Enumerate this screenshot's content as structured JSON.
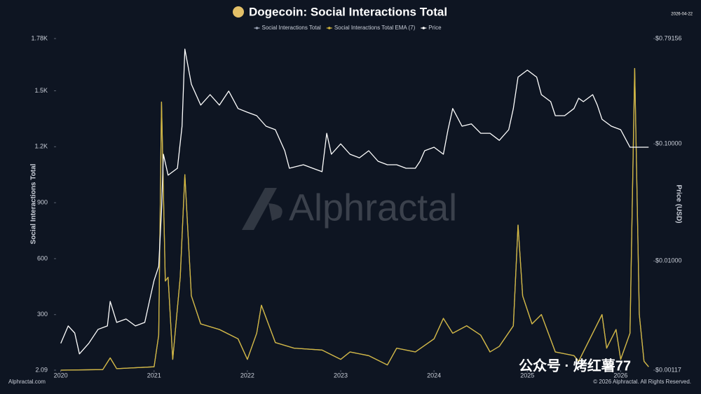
{
  "chart_data": {
    "type": "line",
    "title": "Dogecoin: Social Interactions Total",
    "date": "2026-04-22",
    "y_label": "Social Interactions Total",
    "y2_label": "Price (USD)",
    "watermark": "Alphractal",
    "source": "Alphractal.com",
    "copyright": "© 2026 Alphractal. All Rights Reserved.",
    "overlay_text": "公众号 · 烤红薯77",
    "xlim": [
      2019.95,
      2026.35
    ],
    "xticks": [
      2020,
      2021,
      2022,
      2023,
      2024,
      2025,
      2026
    ],
    "ylim": [
      2.09,
      1780
    ],
    "yticks": [
      2.09,
      300,
      600,
      900,
      {
        "value": 1200,
        "label": "1.2K"
      },
      {
        "value": 1500,
        "label": "1.5K"
      },
      {
        "value": 1780,
        "label": "1.78K"
      }
    ],
    "y2scale": "log",
    "y2lim": [
      0.00117,
      0.79156
    ],
    "y2ticks": [
      {
        "value": 0.00117,
        "label": "$0.00117"
      },
      {
        "value": 0.01,
        "label": "$0.01000"
      },
      {
        "value": 0.1,
        "label": "$0.10000"
      },
      {
        "value": 0.79156,
        "label": "$0.79156"
      }
    ],
    "series": [
      {
        "name": "Social Interactions Total",
        "color": "#9aa3b5",
        "x": [
          2020,
          2020.45,
          2020.53,
          2020.6,
          2021,
          2021.05,
          2021.08,
          2021.12,
          2021.15,
          2021.2,
          2021.28,
          2021.33,
          2021.4,
          2021.5,
          2021.7,
          2021.9,
          2022,
          2022.1,
          2022.15,
          2022.3,
          2022.5,
          2022.8,
          2023,
          2023.1,
          2023.3,
          2023.5,
          2023.6,
          2023.8,
          2024,
          2024.1,
          2024.2,
          2024.35,
          2024.5,
          2024.6,
          2024.7,
          2024.85,
          2024.9,
          2024.95,
          2025.05,
          2025.15,
          2025.3,
          2025.5,
          2025.55,
          2025.7,
          2025.8,
          2025.85,
          2025.95,
          2026,
          2026.1,
          2026.15,
          2026.2,
          2026.25,
          2026.3
        ],
        "values": [
          2,
          5,
          68,
          10,
          20,
          190,
          1440,
          480,
          500,
          60,
          500,
          1050,
          400,
          250,
          220,
          170,
          60,
          200,
          350,
          150,
          120,
          110,
          60,
          100,
          80,
          30,
          120,
          100,
          170,
          280,
          200,
          240,
          190,
          100,
          130,
          240,
          780,
          400,
          250,
          300,
          100,
          80,
          50,
          200,
          300,
          120,
          220,
          60,
          200,
          1620,
          300,
          50,
          20
        ]
      },
      {
        "name": "Social Interactions Total EMA (7)",
        "color": "#d4b73c",
        "x": [
          2020,
          2020.45,
          2020.53,
          2020.6,
          2021,
          2021.05,
          2021.08,
          2021.12,
          2021.15,
          2021.2,
          2021.28,
          2021.33,
          2021.4,
          2021.5,
          2021.7,
          2021.9,
          2022,
          2022.1,
          2022.15,
          2022.3,
          2022.5,
          2022.8,
          2023,
          2023.1,
          2023.3,
          2023.5,
          2023.6,
          2023.8,
          2024,
          2024.1,
          2024.2,
          2024.35,
          2024.5,
          2024.6,
          2024.7,
          2024.85,
          2024.9,
          2024.95,
          2025.05,
          2025.15,
          2025.3,
          2025.5,
          2025.55,
          2025.7,
          2025.8,
          2025.85,
          2025.95,
          2026,
          2026.1,
          2026.15,
          2026.2,
          2026.25,
          2026.3
        ],
        "values": [
          2,
          5,
          68,
          10,
          20,
          190,
          1440,
          480,
          500,
          60,
          500,
          1050,
          400,
          250,
          220,
          170,
          60,
          200,
          350,
          150,
          120,
          110,
          60,
          100,
          80,
          30,
          120,
          100,
          170,
          280,
          200,
          240,
          190,
          100,
          130,
          240,
          780,
          400,
          250,
          300,
          100,
          80,
          50,
          200,
          300,
          120,
          220,
          60,
          200,
          1620,
          300,
          50,
          20
        ]
      },
      {
        "name": "Price",
        "color": "#ffffff",
        "axis": "y2",
        "x": [
          2020,
          2020.08,
          2020.15,
          2020.2,
          2020.3,
          2020.4,
          2020.5,
          2020.53,
          2020.6,
          2020.7,
          2020.8,
          2020.9,
          2020.95,
          2021,
          2021.05,
          2021.08,
          2021.1,
          2021.15,
          2021.25,
          2021.3,
          2021.33,
          2021.4,
          2021.5,
          2021.6,
          2021.7,
          2021.8,
          2021.9,
          2022,
          2022.1,
          2022.2,
          2022.3,
          2022.4,
          2022.45,
          2022.6,
          2022.7,
          2022.8,
          2022.85,
          2022.9,
          2023,
          2023.1,
          2023.2,
          2023.3,
          2023.4,
          2023.5,
          2023.6,
          2023.7,
          2023.8,
          2023.85,
          2023.9,
          2024,
          2024.1,
          2024.15,
          2024.2,
          2024.3,
          2024.4,
          2024.5,
          2024.6,
          2024.7,
          2024.8,
          2024.85,
          2024.9,
          2025,
          2025.1,
          2025.15,
          2025.25,
          2025.3,
          2025.4,
          2025.5,
          2025.55,
          2025.6,
          2025.7,
          2025.75,
          2025.8,
          2025.9,
          2026,
          2026.1,
          2026.2,
          2026.3
        ],
        "values": [
          0.00198,
          0.00279,
          0.00243,
          0.00161,
          0.00198,
          0.00261,
          0.00279,
          0.00452,
          0.00299,
          0.0032,
          0.00279,
          0.00299,
          0.00452,
          0.00683,
          0.009,
          0.0271,
          0.0815,
          0.054,
          0.0619,
          0.1415,
          0.644,
          0.323,
          0.214,
          0.263,
          0.214,
          0.282,
          0.2,
          0.186,
          0.174,
          0.1415,
          0.132,
          0.0873,
          0.0619,
          0.0663,
          0.0619,
          0.0578,
          0.123,
          0.0815,
          0.1,
          0.0815,
          0.076,
          0.0873,
          0.071,
          0.0663,
          0.0663,
          0.0619,
          0.0619,
          0.071,
          0.0873,
          0.0935,
          0.0815,
          0.132,
          0.2,
          0.1415,
          0.148,
          0.123,
          0.123,
          0.107,
          0.132,
          0.2,
          0.371,
          0.426,
          0.371,
          0.263,
          0.229,
          0.174,
          0.174,
          0.2,
          0.245,
          0.229,
          0.263,
          0.214,
          0.162,
          0.1415,
          0.132,
          0.0935,
          0.0935,
          0.0935
        ]
      }
    ]
  }
}
